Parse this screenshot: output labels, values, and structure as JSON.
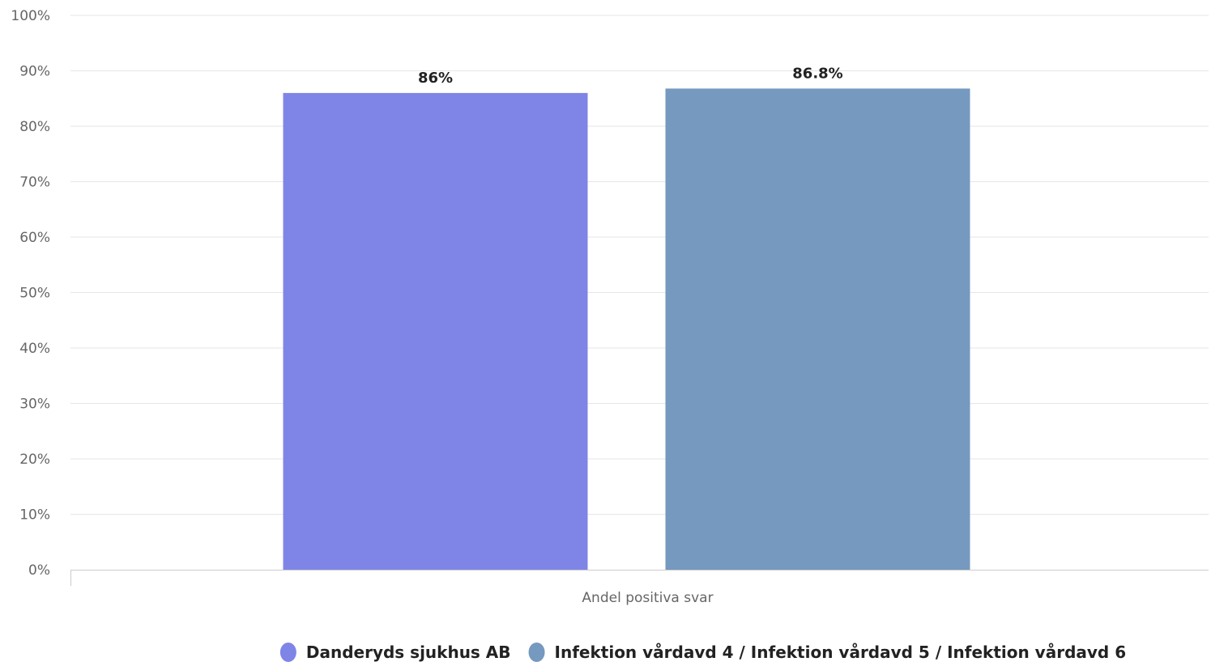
{
  "chart_data": {
    "type": "bar",
    "categories": [
      "Andel positiva svar"
    ],
    "series": [
      {
        "name": "Danderyds sjukhus AB",
        "values": [
          86
        ],
        "label": "86%",
        "color": "#7f85e6"
      },
      {
        "name": "Infektion vårdavd 4 / Infektion vårdavd 5 / Infektion vårdavd 6",
        "values": [
          86.8
        ],
        "label": "86.8%",
        "color": "#7599bf"
      }
    ],
    "ylim": [
      0,
      100
    ],
    "y_ticks": [
      0,
      10,
      20,
      30,
      40,
      50,
      60,
      70,
      80,
      90,
      100
    ],
    "y_tick_labels": [
      "0%",
      "10%",
      "20%",
      "30%",
      "40%",
      "50%",
      "60%",
      "70%",
      "80%",
      "90%",
      "100%"
    ],
    "grid": true,
    "legend_position": "bottom-center"
  }
}
